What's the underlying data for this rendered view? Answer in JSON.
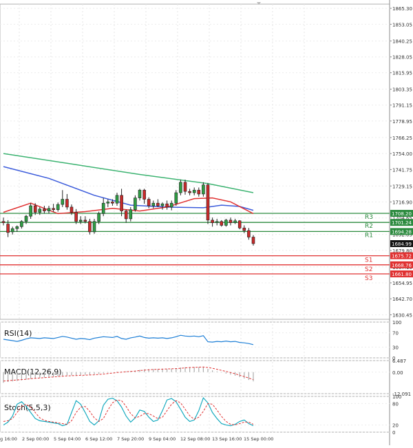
{
  "chart_data": {
    "type": "candlestick",
    "panels": {
      "price": {
        "y_ticks": [
          "1865.30",
          "1853.05",
          "1840.25",
          "1828.05",
          "1815.95",
          "1803.35",
          "1791.15",
          "1778.95",
          "1766.25",
          "1754.00",
          "1741.75",
          "1729.15",
          "1716.90",
          "1704.65",
          "1692.05",
          "1679.80",
          "1667.15",
          "1654.95",
          "1642.70",
          "1630.45"
        ],
        "y_range": [
          1627.0,
          1868.5
        ],
        "candles": [
          {
            "o": 1702.0,
            "h": 1705.0,
            "l": 1699.0,
            "c": 1701.0
          },
          {
            "o": 1700.0,
            "h": 1703.0,
            "l": 1690.0,
            "c": 1693.5
          },
          {
            "o": 1694.0,
            "h": 1698.0,
            "l": 1692.0,
            "c": 1696.5
          },
          {
            "o": 1696.5,
            "h": 1699.0,
            "l": 1694.0,
            "c": 1698.0
          },
          {
            "o": 1698.0,
            "h": 1703.0,
            "l": 1696.5,
            "c": 1702.0
          },
          {
            "o": 1702.0,
            "h": 1707.0,
            "l": 1700.0,
            "c": 1706.0
          },
          {
            "o": 1706.0,
            "h": 1716.0,
            "l": 1704.0,
            "c": 1714.0
          },
          {
            "o": 1714.0,
            "h": 1716.0,
            "l": 1707.0,
            "c": 1709.0
          },
          {
            "o": 1709.0,
            "h": 1713.0,
            "l": 1707.0,
            "c": 1711.5
          },
          {
            "o": 1711.5,
            "h": 1714.0,
            "l": 1708.0,
            "c": 1710.0
          },
          {
            "o": 1710.0,
            "h": 1714.0,
            "l": 1708.0,
            "c": 1712.0
          },
          {
            "o": 1712.0,
            "h": 1715.5,
            "l": 1709.5,
            "c": 1711.0
          },
          {
            "o": 1711.0,
            "h": 1716.5,
            "l": 1709.5,
            "c": 1715.0
          },
          {
            "o": 1715.0,
            "h": 1726.0,
            "l": 1713.0,
            "c": 1719.0
          },
          {
            "o": 1719.0,
            "h": 1723.0,
            "l": 1711.0,
            "c": 1713.0
          },
          {
            "o": 1713.0,
            "h": 1715.0,
            "l": 1707.0,
            "c": 1709.0
          },
          {
            "o": 1709.0,
            "h": 1711.5,
            "l": 1700.0,
            "c": 1702.0
          },
          {
            "o": 1702.0,
            "h": 1706.0,
            "l": 1700.0,
            "c": 1703.0
          },
          {
            "o": 1703.0,
            "h": 1706.0,
            "l": 1700.5,
            "c": 1702.0
          },
          {
            "o": 1702.0,
            "h": 1704.0,
            "l": 1692.0,
            "c": 1694.0
          },
          {
            "o": 1694.0,
            "h": 1704.0,
            "l": 1692.5,
            "c": 1702.0
          },
          {
            "o": 1702.0,
            "h": 1709.5,
            "l": 1700.0,
            "c": 1708.0
          },
          {
            "o": 1708.0,
            "h": 1720.0,
            "l": 1706.0,
            "c": 1716.0
          },
          {
            "o": 1716.0,
            "h": 1719.0,
            "l": 1713.0,
            "c": 1717.0
          },
          {
            "o": 1717.0,
            "h": 1719.0,
            "l": 1714.0,
            "c": 1716.0
          },
          {
            "o": 1716.0,
            "h": 1724.0,
            "l": 1714.0,
            "c": 1722.0
          },
          {
            "o": 1722.0,
            "h": 1727.0,
            "l": 1706.0,
            "c": 1710.0
          },
          {
            "o": 1710.0,
            "h": 1711.0,
            "l": 1701.0,
            "c": 1704.0
          },
          {
            "o": 1704.0,
            "h": 1713.0,
            "l": 1702.0,
            "c": 1711.0
          },
          {
            "o": 1711.0,
            "h": 1722.0,
            "l": 1709.5,
            "c": 1720.0
          },
          {
            "o": 1720.0,
            "h": 1727.0,
            "l": 1718.0,
            "c": 1726.0
          },
          {
            "o": 1726.0,
            "h": 1727.0,
            "l": 1715.5,
            "c": 1719.0
          },
          {
            "o": 1719.0,
            "h": 1720.5,
            "l": 1712.0,
            "c": 1714.0
          },
          {
            "o": 1714.0,
            "h": 1718.0,
            "l": 1712.0,
            "c": 1716.0
          },
          {
            "o": 1716.0,
            "h": 1719.0,
            "l": 1713.0,
            "c": 1714.0
          },
          {
            "o": 1714.0,
            "h": 1716.5,
            "l": 1711.0,
            "c": 1715.5
          },
          {
            "o": 1715.5,
            "h": 1718.0,
            "l": 1711.0,
            "c": 1713.0
          },
          {
            "o": 1713.0,
            "h": 1718.0,
            "l": 1710.5,
            "c": 1716.0
          },
          {
            "o": 1716.0,
            "h": 1726.0,
            "l": 1714.0,
            "c": 1724.0
          },
          {
            "o": 1724.0,
            "h": 1734.0,
            "l": 1722.0,
            "c": 1732.0
          },
          {
            "o": 1732.0,
            "h": 1734.0,
            "l": 1722.5,
            "c": 1725.0
          },
          {
            "o": 1725.0,
            "h": 1727.0,
            "l": 1722.0,
            "c": 1724.0
          },
          {
            "o": 1724.0,
            "h": 1728.0,
            "l": 1722.0,
            "c": 1726.0
          },
          {
            "o": 1726.0,
            "h": 1728.0,
            "l": 1721.0,
            "c": 1723.0
          },
          {
            "o": 1723.0,
            "h": 1732.0,
            "l": 1721.0,
            "c": 1730.0
          },
          {
            "o": 1730.0,
            "h": 1731.5,
            "l": 1700.0,
            "c": 1703.0
          },
          {
            "o": 1703.0,
            "h": 1705.0,
            "l": 1698.0,
            "c": 1701.0
          },
          {
            "o": 1701.0,
            "h": 1704.0,
            "l": 1699.0,
            "c": 1702.0
          },
          {
            "o": 1702.0,
            "h": 1703.0,
            "l": 1698.0,
            "c": 1699.0
          },
          {
            "o": 1699.0,
            "h": 1704.0,
            "l": 1698.0,
            "c": 1703.0
          },
          {
            "o": 1703.0,
            "h": 1705.0,
            "l": 1699.0,
            "c": 1701.0
          },
          {
            "o": 1701.0,
            "h": 1704.0,
            "l": 1700.0,
            "c": 1702.5
          },
          {
            "o": 1702.5,
            "h": 1703.0,
            "l": 1696.0,
            "c": 1697.0
          },
          {
            "o": 1697.0,
            "h": 1699.0,
            "l": 1693.0,
            "c": 1695.0
          },
          {
            "o": 1695.0,
            "h": 1697.0,
            "l": 1688.0,
            "c": 1690.0
          },
          {
            "o": 1690.0,
            "h": 1691.5,
            "l": 1683.5,
            "c": 1685.0
          }
        ],
        "ma_green": {
          "color": "#3cb371",
          "points": [
            [
              0,
              1754.0
            ],
            [
              15,
              1746.0
            ],
            [
              30,
              1738.0
            ],
            [
              45,
              1731.0
            ],
            [
              55,
              1724.0
            ]
          ]
        },
        "ma_blue": {
          "color": "#3b5bdb",
          "points": [
            [
              0,
              1744.0
            ],
            [
              10,
              1735.0
            ],
            [
              20,
              1722.0
            ],
            [
              28,
              1714.5
            ],
            [
              36,
              1713.0
            ],
            [
              44,
              1712.5
            ],
            [
              48,
              1714.5
            ],
            [
              52,
              1713.5
            ],
            [
              55,
              1710.5
            ]
          ]
        },
        "ma_red": {
          "color": "#e03131",
          "points": [
            [
              0,
              1709.0
            ],
            [
              6,
              1716.0
            ],
            [
              12,
              1708.0
            ],
            [
              18,
              1709.5
            ],
            [
              24,
              1712.0
            ],
            [
              30,
              1710.0
            ],
            [
              36,
              1713.0
            ],
            [
              42,
              1719.5
            ],
            [
              46,
              1720.0
            ],
            [
              50,
              1717.0
            ],
            [
              55,
              1708.0
            ]
          ]
        },
        "levels": [
          {
            "name": "R3",
            "value": 1708.2,
            "label": "1708.20",
            "color": "#2b8a3e"
          },
          {
            "name": "R2",
            "value": 1701.24,
            "label": "1701.24",
            "color": "#2b8a3e"
          },
          {
            "name": "R1",
            "value": 1694.28,
            "label": "1694.28",
            "color": "#2b8a3e"
          },
          {
            "name": "S1",
            "value": 1675.72,
            "label": "1675.72",
            "color": "#e03131"
          },
          {
            "name": "S2",
            "value": 1668.76,
            "label": "1668.76",
            "color": "#e03131"
          },
          {
            "name": "S3",
            "value": 1661.8,
            "label": "1661.80",
            "color": "#e03131"
          }
        ],
        "current_price": "1684.99"
      },
      "rsi": {
        "title": "RSI(14)",
        "y_ticks": [
          "100",
          "70",
          "30",
          "0"
        ],
        "y_range": [
          0,
          100
        ],
        "color": "#1c7ed6",
        "values": [
          52,
          50,
          48,
          46,
          49,
          53,
          56,
          55,
          54,
          56,
          55,
          54,
          57,
          60,
          58,
          55,
          52,
          54,
          53,
          51,
          55,
          57,
          59,
          58,
          57,
          60,
          54,
          52,
          56,
          58,
          61,
          57,
          55,
          56,
          55,
          56,
          54,
          56,
          59,
          63,
          61,
          60,
          61,
          59,
          62,
          45,
          44,
          46,
          45,
          47,
          45,
          46,
          43,
          42,
          40,
          37
        ]
      },
      "macd": {
        "title": "MACD(12,26,9)",
        "y_ticks": [
          "6.487",
          "0.00",
          "-12.091"
        ],
        "y_range": [
          -12.091,
          6.487
        ],
        "histogram": [
          -6,
          -5.5,
          -5.2,
          -5,
          -4.6,
          -4.2,
          -3.8,
          -3.5,
          -3.3,
          -3.0,
          -2.8,
          -2.6,
          -2.4,
          -2.1,
          -1.9,
          -1.8,
          -1.8,
          -1.6,
          -1.5,
          -1.5,
          -1.2,
          -1.0,
          -0.6,
          -0.3,
          0.0,
          0.3,
          0.3,
          0.4,
          0.6,
          0.9,
          1.3,
          1.6,
          1.7,
          1.8,
          1.8,
          1.9,
          1.8,
          1.9,
          2.2,
          2.6,
          2.8,
          2.8,
          2.9,
          2.9,
          3.0,
          1.8,
          1.0,
          0.4,
          -0.2,
          -0.8,
          -1.4,
          -2.0,
          -2.8,
          -3.6,
          -4.4,
          -5.2
        ],
        "signal": [
          -5.0,
          -4.8,
          -4.6,
          -4.4,
          -4.2,
          -4.0,
          -3.7,
          -3.5,
          -3.3,
          -3.1,
          -2.9,
          -2.7,
          -2.5,
          -2.3,
          -2.1,
          -2.0,
          -1.9,
          -1.8,
          -1.7,
          -1.6,
          -1.5,
          -1.3,
          -1.1,
          -0.8,
          -0.5,
          -0.2,
          0.0,
          0.2,
          0.4,
          0.6,
          0.9,
          1.1,
          1.3,
          1.5,
          1.6,
          1.7,
          1.8,
          1.9,
          2.0,
          2.2,
          2.4,
          2.6,
          2.7,
          2.8,
          2.9,
          2.6,
          2.2,
          1.6,
          1.0,
          0.4,
          -0.2,
          -0.9,
          -1.7,
          -2.5,
          -3.3,
          -4.2
        ],
        "signal_color": "#e03131"
      },
      "stoch": {
        "title": "Stoch(5,5,3)",
        "y_ticks": [
          "100",
          "80",
          "20",
          "0"
        ],
        "y_range": [
          0,
          100
        ],
        "main": [
          20,
          28,
          45,
          78,
          85,
          72,
          55,
          38,
          32,
          30,
          28,
          26,
          24,
          18,
          22,
          55,
          88,
          78,
          55,
          30,
          20,
          32,
          75,
          92,
          95,
          88,
          70,
          45,
          28,
          40,
          62,
          58,
          42,
          30,
          34,
          60,
          90,
          94,
          85,
          64,
          42,
          30,
          34,
          60,
          96,
          82,
          55,
          38,
          24,
          20,
          18,
          22,
          30,
          34,
          24,
          18
        ],
        "signal": [
          30,
          32,
          38,
          55,
          72,
          78,
          70,
          55,
          40,
          33,
          30,
          28,
          26,
          24,
          22,
          32,
          55,
          70,
          72,
          58,
          40,
          30,
          38,
          62,
          82,
          90,
          88,
          72,
          52,
          40,
          44,
          52,
          52,
          45,
          38,
          42,
          60,
          78,
          88,
          82,
          64,
          46,
          36,
          42,
          58,
          80,
          78,
          62,
          44,
          30,
          22,
          20,
          24,
          28,
          28,
          22
        ],
        "main_color": "#15aabf",
        "signal_color": "#e03131"
      }
    },
    "x_labels": [
      "g 16:00",
      "2 Sep 00:00",
      "5 Sep 04:00",
      "6 Sep 12:00",
      "7 Sep 20:00",
      "9 Sep 04:00",
      "12 Sep 08:00",
      "13 Sep 16:00",
      "15 Sep 00:00"
    ]
  }
}
